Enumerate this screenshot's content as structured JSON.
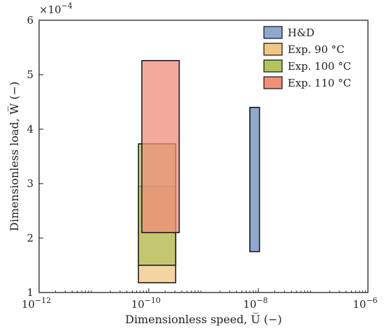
{
  "chart_data": {
    "type": "rectangle",
    "xlabel": "Dimensionless speed, U̅ (−)",
    "ylabel": "Dimensionless load, W̅ (−)",
    "x_scale": "log",
    "xlim": [
      1e-12,
      1e-06
    ],
    "ylim": [
      1,
      6
    ],
    "y_multiplier_label": "×10",
    "y_multiplier_exponent": "−4",
    "x_ticks": [
      {
        "value": 1e-12,
        "base": "10",
        "exp": "−12"
      },
      {
        "value": 1e-10,
        "base": "10",
        "exp": "−10"
      },
      {
        "value": 1e-08,
        "base": "10",
        "exp": "−8"
      },
      {
        "value": 1e-06,
        "base": "10",
        "exp": "−6"
      }
    ],
    "y_ticks": [
      {
        "value": 1,
        "label": "1"
      },
      {
        "value": 2,
        "label": "2"
      },
      {
        "value": 3,
        "label": "3"
      },
      {
        "value": 4,
        "label": "4"
      },
      {
        "value": 5,
        "label": "5"
      },
      {
        "value": 6,
        "label": "6"
      }
    ],
    "legend_position": "top-right",
    "grid": false,
    "series": [
      {
        "name": "H&D",
        "color": "#8fa8cc",
        "x_min": 7e-09,
        "x_max": 1.05e-08,
        "y_min": 1.75,
        "y_max": 4.4
      },
      {
        "name": "Exp. 90 °C",
        "color": "#f0c684",
        "x_min": 6.5e-11,
        "x_max": 3.1e-10,
        "y_min": 1.18,
        "y_max": 2.95
      },
      {
        "name": "Exp. 100 °C",
        "color": "#b4c35e",
        "x_min": 6.5e-11,
        "x_max": 3.1e-10,
        "y_min": 1.5,
        "y_max": 3.73
      },
      {
        "name": "Exp. 110 °C",
        "color": "#f08e78",
        "x_min": 7.5e-11,
        "x_max": 3.6e-10,
        "y_min": 2.1,
        "y_max": 5.26
      }
    ]
  }
}
